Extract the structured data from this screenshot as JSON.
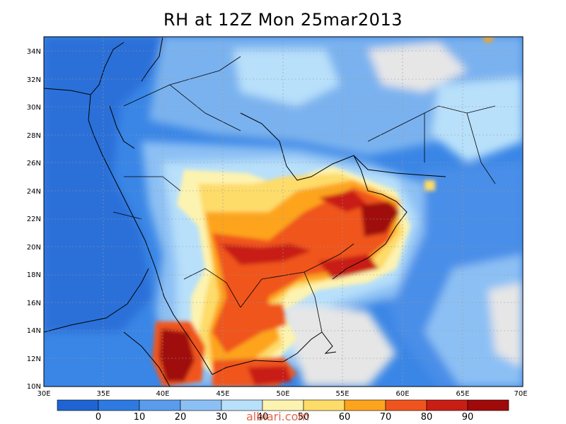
{
  "title": "RH at 12Z Mon 25mar2013",
  "watermark": "albiari.com",
  "map": {
    "lon_range": [
      30,
      70
    ],
    "lat_range": [
      10,
      35
    ],
    "lat_ticks": [
      "10N",
      "12N",
      "14N",
      "16N",
      "18N",
      "20N",
      "22N",
      "24N",
      "26N",
      "28N",
      "30N",
      "32N",
      "34N"
    ],
    "lon_ticks": [
      "30E",
      "35E",
      "40E",
      "45E",
      "50E",
      "55E",
      "60E",
      "65E",
      "70E"
    ]
  },
  "colorbar": {
    "colors": [
      "#1e64d2",
      "#2e7ae0",
      "#5a9cec",
      "#8cc0f4",
      "#b8e0fa",
      "#fdf3b0",
      "#fddc6a",
      "#fda41e",
      "#f0541e",
      "#c81e14",
      "#a00a0a"
    ],
    "labels": [
      "0",
      "10",
      "20",
      "30",
      "40",
      "50",
      "60",
      "70",
      "80",
      "90"
    ]
  }
}
